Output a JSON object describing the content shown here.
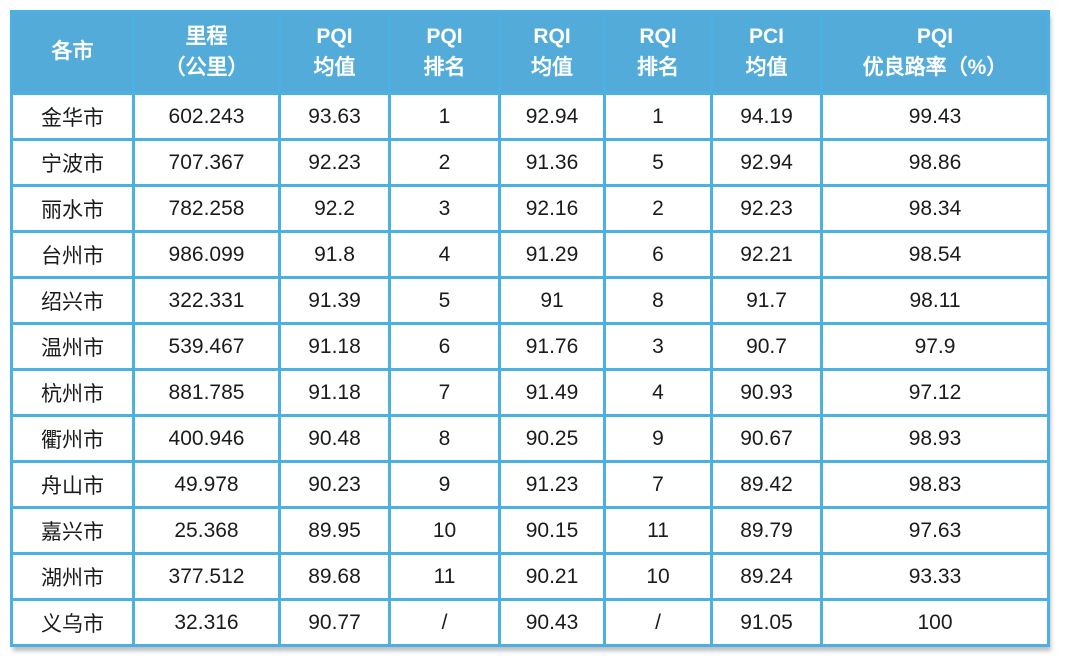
{
  "colors": {
    "header_bg": "#52abd8",
    "grid_border": "#4db0e2",
    "header_text": "#ffffff",
    "body_text": "#1b1b1b"
  },
  "table": {
    "header": [
      {
        "line1": "各市",
        "line2": ""
      },
      {
        "line1": "里程",
        "line2": "（公里）"
      },
      {
        "line1": "PQI",
        "line2": "均值"
      },
      {
        "line1": "PQI",
        "line2": "排名"
      },
      {
        "line1": "RQI",
        "line2": "均值"
      },
      {
        "line1": "RQI",
        "line2": "排名"
      },
      {
        "line1": "PCI",
        "line2": "均值"
      },
      {
        "line1": "PQI",
        "line2": "优良路率（%）"
      }
    ]
  },
  "chart_data": {
    "type": "table",
    "title": "",
    "columns": [
      "各市",
      "里程（公里）",
      "PQI均值",
      "PQI排名",
      "RQI均值",
      "RQI排名",
      "PCI均值",
      "PQI优良路率（%）"
    ],
    "rows": [
      [
        "金华市",
        "602.243",
        "93.63",
        "1",
        "92.94",
        "1",
        "94.19",
        "99.43"
      ],
      [
        "宁波市",
        "707.367",
        "92.23",
        "2",
        "91.36",
        "5",
        "92.94",
        "98.86"
      ],
      [
        "丽水市",
        "782.258",
        "92.2",
        "3",
        "92.16",
        "2",
        "92.23",
        "98.34"
      ],
      [
        "台州市",
        "986.099",
        "91.8",
        "4",
        "91.29",
        "6",
        "92.21",
        "98.54"
      ],
      [
        "绍兴市",
        "322.331",
        "91.39",
        "5",
        "91",
        "8",
        "91.7",
        "98.11"
      ],
      [
        "温州市",
        "539.467",
        "91.18",
        "6",
        "91.76",
        "3",
        "90.7",
        "97.9"
      ],
      [
        "杭州市",
        "881.785",
        "91.18",
        "7",
        "91.49",
        "4",
        "90.93",
        "97.12"
      ],
      [
        "衢州市",
        "400.946",
        "90.48",
        "8",
        "90.25",
        "9",
        "90.67",
        "98.93"
      ],
      [
        "舟山市",
        "49.978",
        "90.23",
        "9",
        "91.23",
        "7",
        "89.42",
        "98.83"
      ],
      [
        "嘉兴市",
        "25.368",
        "89.95",
        "10",
        "90.15",
        "11",
        "89.79",
        "97.63"
      ],
      [
        "湖州市",
        "377.512",
        "89.68",
        "11",
        "90.21",
        "10",
        "89.24",
        "93.33"
      ],
      [
        "义乌市",
        "32.316",
        "90.77",
        "/",
        "90.43",
        "/",
        "91.05",
        "100"
      ]
    ]
  }
}
